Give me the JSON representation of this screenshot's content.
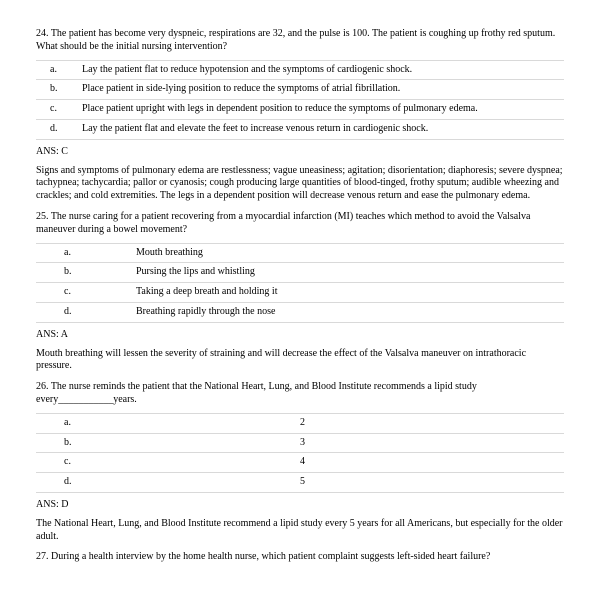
{
  "doc": {
    "font_family": "Times New Roman",
    "base_font_size_pt": 10,
    "text_color": "#000000",
    "rule_color": "#d9d9d9",
    "background": "#ffffff"
  },
  "q24": {
    "number": "24.",
    "stem": "The patient has become very dyspneic, respirations are 32, and the pulse is 100. The patient is coughing up frothy red sputum. What should be the initial nursing intervention?",
    "options": [
      {
        "letter": "a.",
        "text": "Lay the patient flat to reduce hypotension and the symptoms of cardiogenic shock."
      },
      {
        "letter": "b.",
        "text": "Place patient in side-lying position to reduce the symptoms of atrial fibrillation."
      },
      {
        "letter": "c.",
        "text": "Place patient upright with legs in dependent position to reduce the symptoms of pulmonary edema."
      },
      {
        "letter": "d.",
        "text": "Lay the patient flat and elevate the feet to increase venous return in cardiogenic shock."
      }
    ],
    "answer": "ANS: C",
    "rationale": "Signs and symptoms of pulmonary edema are restlessness; vague uneasiness; agitation; disorientation; diaphoresis; severe dyspnea; tachypnea; tachycardia; pallor or cyanosis; cough producing large quantities of blood-tinged, frothy sputum; audible wheezing and crackles; and cold extremities. The legs in a dependent position will decrease venous return and ease the pulmonary edema."
  },
  "q25": {
    "number": "25.",
    "stem": "The nurse caring for a patient recovering from a myocardial infarction (MI) teaches which method to avoid the Valsalva maneuver during a bowel movement?",
    "options": [
      {
        "letter": "a.",
        "text": "Mouth breathing"
      },
      {
        "letter": "b.",
        "text": "Pursing the lips and whistling"
      },
      {
        "letter": "c.",
        "text": "Taking a deep breath and holding it"
      },
      {
        "letter": "d.",
        "text": "Breathing rapidly through the nose"
      }
    ],
    "answer": "ANS: A",
    "rationale": "Mouth breathing will lessen the severity of straining and will decrease the effect of the Valsalva maneuver on intrathoracic pressure."
  },
  "q26": {
    "number": "26.",
    "stem": "The nurse reminds the patient that the National Heart, Lung, and Blood Institute recommends a lipid study every___________years.",
    "options": [
      {
        "letter": "a.",
        "value": "2"
      },
      {
        "letter": "b.",
        "value": "3"
      },
      {
        "letter": "c.",
        "value": "4"
      },
      {
        "letter": "d.",
        "value": "5"
      }
    ],
    "answer": "ANS: D",
    "rationale": "The National Heart, Lung, and Blood Institute recommend a lipid study every 5 years for all Americans, but especially for the older adult."
  },
  "q27": {
    "number": "27.",
    "stem": "During a health interview by the home health nurse, which patient complaint suggests left-sided heart failure?"
  }
}
